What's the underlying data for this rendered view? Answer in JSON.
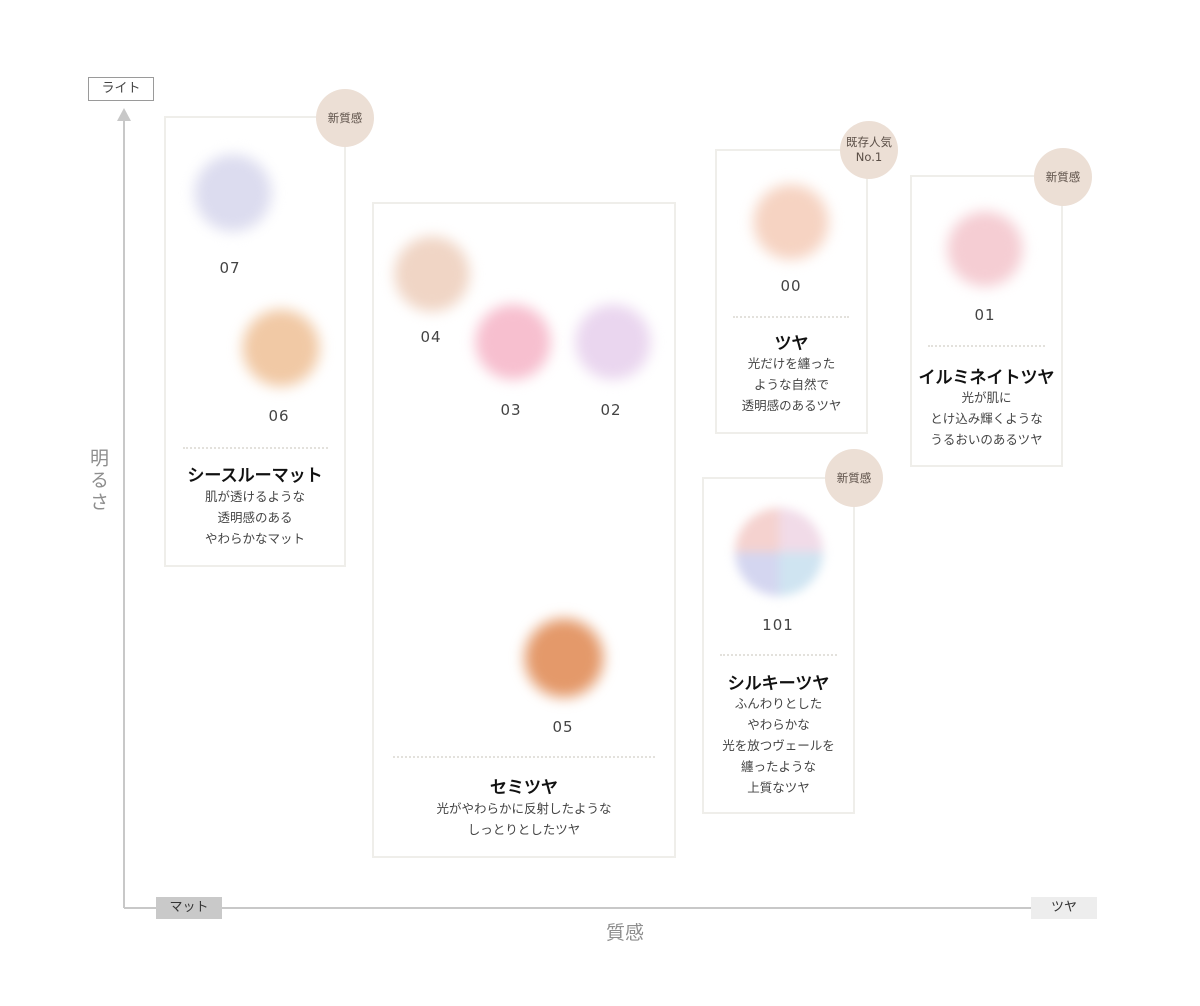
{
  "axes": {
    "y_top_tag": "ライト",
    "y_title": "明るさ",
    "x_left_tag": "マット",
    "x_right_tag": "ツヤ",
    "x_title": "質感"
  },
  "groups": {
    "seethrough": {
      "badge": "新質感",
      "title": "シースルーマット",
      "desc": "肌が透けるような\n透明感のある\nやわらかなマット",
      "codes": [
        "07",
        "06"
      ]
    },
    "semitsuya": {
      "title": "セミツヤ",
      "desc": "光がやわらかに反射したような\nしっとりとしたツヤ",
      "codes": [
        "04",
        "03",
        "02",
        "05"
      ]
    },
    "tsuya": {
      "badge": "既存人気\nNo.1",
      "title": "ツヤ",
      "desc": "光だけを纏った\nような自然で\n透明感のあるツヤ",
      "codes": [
        "00"
      ]
    },
    "illuminate": {
      "badge": "新質感",
      "title": "イルミネイトツヤ",
      "desc": "光が肌に\nとけ込み輝くような\nうるおいのあるツヤ",
      "codes": [
        "01"
      ]
    },
    "silky": {
      "badge": "新質感",
      "title": "シルキーツヤ",
      "desc": "ふんわりとした\nやわらかな\n光を放つヴェールを\n纏ったような\n上質なツヤ",
      "codes": [
        "101"
      ]
    }
  },
  "swatch_colors": {
    "07": "#dcdcef",
    "06": "#f1c9a5",
    "04": "#f0d5c5",
    "03": "#f7bfcf",
    "02": "#ead6ef",
    "05": "#e4996a",
    "00": "#f6d3c2",
    "01": "#f5cdd3",
    "101": [
      "#f5d2cf",
      "#f1dbe8",
      "#d4d6f0",
      "#cfe4f1"
    ]
  }
}
